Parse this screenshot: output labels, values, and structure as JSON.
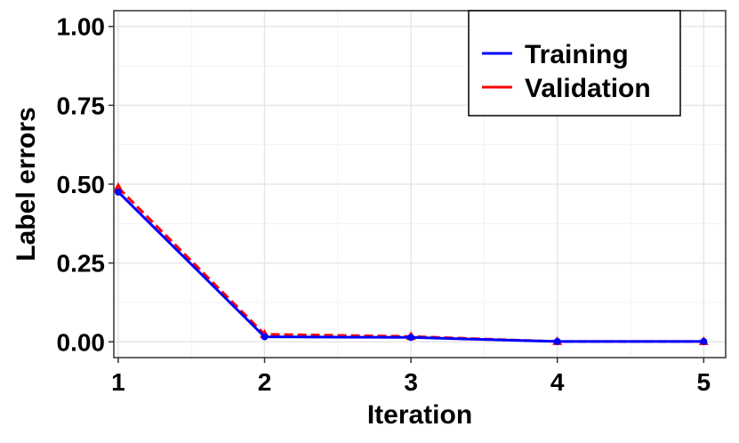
{
  "chart_data": {
    "type": "line",
    "title": "",
    "xlabel": "Iteration",
    "ylabel": "Label errors",
    "x": [
      1,
      2,
      3,
      4,
      5
    ],
    "x_tick_labels": [
      "1",
      "2",
      "3",
      "4",
      "5"
    ],
    "y_tick_labels": [
      "0.00",
      "0.25",
      "0.50",
      "0.75",
      "1.00"
    ],
    "y_ticks": [
      0,
      0.25,
      0.5,
      0.75,
      1.0
    ],
    "xlim": [
      0.97,
      5.15
    ],
    "ylim": [
      -0.05,
      1.05
    ],
    "grid": true,
    "legend_position": "top-right",
    "series": [
      {
        "name": "Training",
        "values": [
          0.475,
          0.016,
          0.014,
          0.001,
          0.001
        ],
        "color": "#0000ff",
        "line_style": "solid",
        "marker": "circle"
      },
      {
        "name": "Validation",
        "values": [
          0.489,
          0.024,
          0.017,
          0.001,
          0.001
        ],
        "color": "#ff0000",
        "line_style": "dashed",
        "marker": "triangle"
      }
    ]
  }
}
